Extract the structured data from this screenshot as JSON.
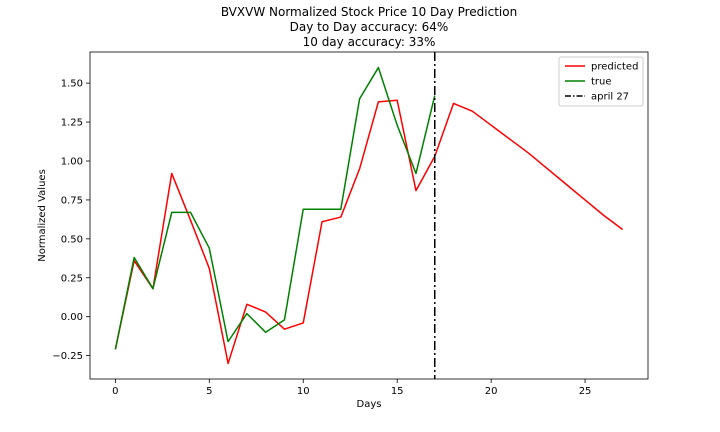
{
  "chart_data": {
    "type": "line",
    "title_lines": [
      "BVXVW Normalized Stock Price 10 Day Prediction",
      "Day to Day accuracy: 64%",
      "10 day accuracy: 33%"
    ],
    "xlabel": "Days",
    "ylabel": "Normalized Values",
    "xlim": [
      -1.35,
      28.35
    ],
    "ylim": [
      -0.4,
      1.7
    ],
    "x_ticks": [
      0,
      5,
      10,
      15,
      20,
      25
    ],
    "y_ticks": [
      -0.25,
      0.0,
      0.25,
      0.5,
      0.75,
      1.0,
      1.25,
      1.5
    ],
    "y_tick_labels": [
      "−0.25",
      "0.00",
      "0.25",
      "0.50",
      "0.75",
      "1.00",
      "1.25",
      "1.50"
    ],
    "legend_position": "upper right",
    "series": [
      {
        "name": "predicted",
        "color": "#ff0000",
        "style": "solid",
        "x": [
          0,
          1,
          2,
          3,
          4,
          5,
          6,
          7,
          8,
          9,
          10,
          11,
          12,
          13,
          14,
          15,
          16,
          17,
          18,
          19,
          20,
          21,
          22,
          23,
          24,
          25,
          26,
          27
        ],
        "y": [
          -0.21,
          0.36,
          0.18,
          0.92,
          0.62,
          0.31,
          -0.3,
          0.08,
          0.03,
          -0.08,
          -0.04,
          0.61,
          0.64,
          0.95,
          1.38,
          1.39,
          0.81,
          1.03,
          1.37,
          1.32,
          1.23,
          1.14,
          1.05,
          0.95,
          0.85,
          0.75,
          0.65,
          0.56
        ]
      },
      {
        "name": "true",
        "color": "#008000",
        "style": "solid",
        "x": [
          0,
          1,
          2,
          3,
          4,
          5,
          6,
          7,
          8,
          9,
          10,
          11,
          12,
          13,
          14,
          15,
          16,
          17
        ],
        "y": [
          -0.21,
          0.38,
          0.18,
          0.67,
          0.67,
          0.44,
          -0.16,
          0.02,
          -0.1,
          -0.02,
          0.69,
          0.69,
          0.69,
          1.4,
          1.6,
          1.23,
          0.92,
          1.42
        ]
      }
    ],
    "vline": {
      "x": 17,
      "name": "april 27",
      "color": "#000000",
      "style": "dashdot"
    }
  }
}
